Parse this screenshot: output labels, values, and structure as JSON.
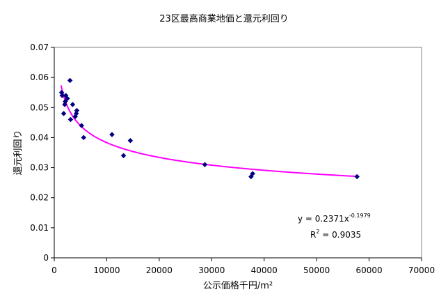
{
  "chart_data": {
    "type": "scatter",
    "title": "23区最高商業地価と還元利回り",
    "xlabel": "公示価格千円/m²",
    "ylabel": "還元利回り",
    "xlim": [
      0,
      70000
    ],
    "ylim": [
      0,
      0.07
    ],
    "x_ticks": [
      "0",
      "10000",
      "20000",
      "30000",
      "40000",
      "50000",
      "60000",
      "70000"
    ],
    "y_ticks": [
      "0",
      "0.01",
      "0.02",
      "0.03",
      "0.04",
      "0.05",
      "0.06",
      "0.07"
    ],
    "grid": false,
    "series": [
      {
        "marker": "diamond",
        "color": "#000080",
        "points": [
          {
            "x": 1400,
            "y": 0.055
          },
          {
            "x": 1500,
            "y": 0.054
          },
          {
            "x": 1800,
            "y": 0.048
          },
          {
            "x": 2000,
            "y": 0.051
          },
          {
            "x": 2100,
            "y": 0.052
          },
          {
            "x": 2200,
            "y": 0.054
          },
          {
            "x": 2500,
            "y": 0.053
          },
          {
            "x": 3000,
            "y": 0.059
          },
          {
            "x": 3100,
            "y": 0.046
          },
          {
            "x": 3500,
            "y": 0.051
          },
          {
            "x": 4000,
            "y": 0.047
          },
          {
            "x": 4200,
            "y": 0.048
          },
          {
            "x": 4300,
            "y": 0.049
          },
          {
            "x": 5200,
            "y": 0.044
          },
          {
            "x": 5600,
            "y": 0.04
          },
          {
            "x": 11000,
            "y": 0.041
          },
          {
            "x": 13200,
            "y": 0.034
          },
          {
            "x": 14500,
            "y": 0.039
          },
          {
            "x": 28700,
            "y": 0.031
          },
          {
            "x": 37500,
            "y": 0.027
          },
          {
            "x": 37800,
            "y": 0.028
          },
          {
            "x": 57700,
            "y": 0.027
          }
        ]
      }
    ],
    "trendline": {
      "type": "power",
      "a": 0.2371,
      "b": -0.1979,
      "x_range": [
        1300,
        57700
      ],
      "color": "#ff00ff",
      "equation_base": "y = 0.2371x",
      "equation_exponent": "-0.1979",
      "r2_base": "R",
      "r2_exponent": "2",
      "r2_value": " = 0.9035"
    }
  }
}
